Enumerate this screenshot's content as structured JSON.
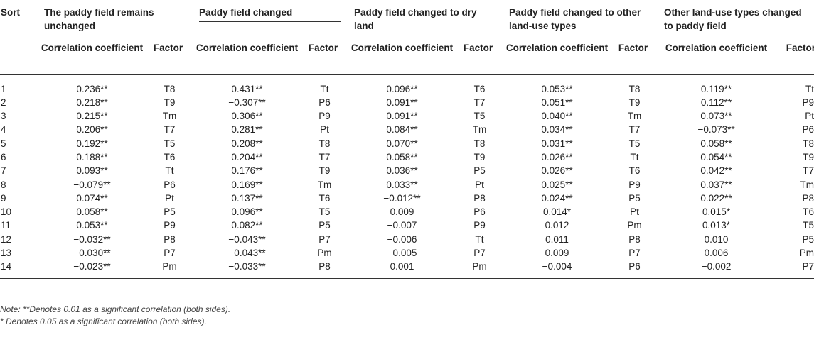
{
  "table": {
    "sort_header": "Sort",
    "groups": [
      "The paddy field remains unchanged",
      "Paddy field changed",
      "Paddy field changed to dry land",
      "Paddy field changed to other land-use types",
      "Other land-use types changed to paddy field"
    ],
    "corr_header": "Correlation coefficient",
    "factor_header": "Factor",
    "rows": [
      [
        "1",
        "0.236**",
        "T8",
        "0.431**",
        "Tt",
        "0.096**",
        "T6",
        "0.053**",
        "T8",
        "0.119**",
        "Tt"
      ],
      [
        "2",
        "0.218**",
        "T9",
        "−0.307**",
        "P6",
        "0.091**",
        "T7",
        "0.051**",
        "T9",
        "0.112**",
        "P9"
      ],
      [
        "3",
        "0.215**",
        "Tm",
        "0.306**",
        "P9",
        "0.091**",
        "T5",
        "0.040**",
        "Tm",
        "0.073**",
        "Pt"
      ],
      [
        "4",
        "0.206**",
        "T7",
        "0.281**",
        "Pt",
        "0.084**",
        "Tm",
        "0.034**",
        "T7",
        "−0.073**",
        "P6"
      ],
      [
        "5",
        "0.192**",
        "T5",
        "0.208**",
        "T8",
        "0.070**",
        "T8",
        "0.031**",
        "T5",
        "0.058**",
        "T8"
      ],
      [
        "6",
        "0.188**",
        "T6",
        "0.204**",
        "T7",
        "0.058**",
        "T9",
        "0.026**",
        "Tt",
        "0.054**",
        "T9"
      ],
      [
        "7",
        "0.093**",
        "Tt",
        "0.176**",
        "T9",
        "0.036**",
        "P5",
        "0.026**",
        "T6",
        "0.042**",
        "T7"
      ],
      [
        "8",
        "−0.079**",
        "P6",
        "0.169**",
        "Tm",
        "0.033**",
        "Pt",
        "0.025**",
        "P9",
        "0.037**",
        "Tm"
      ],
      [
        "9",
        "0.074**",
        "Pt",
        "0.137**",
        "T6",
        "−0.012**",
        "P8",
        "0.024**",
        "P5",
        "0.022**",
        "P8"
      ],
      [
        "10",
        "0.058**",
        "P5",
        "0.096**",
        "T5",
        "0.009",
        "P6",
        "0.014*",
        "Pt",
        "0.015*",
        "T6"
      ],
      [
        "11",
        "0.053**",
        "P9",
        "0.082**",
        "P5",
        "−0.007",
        "P9",
        "0.012",
        "Pm",
        "0.013*",
        "T5"
      ],
      [
        "12",
        "−0.032**",
        "P8",
        "−0.043**",
        "P7",
        "−0.006",
        "Tt",
        "0.011",
        "P8",
        "0.010",
        "P5"
      ],
      [
        "13",
        "−0.030**",
        "P7",
        "−0.043**",
        "Pm",
        "−0.005",
        "P7",
        "0.009",
        "P7",
        "0.006",
        "Pm"
      ],
      [
        "14",
        "−0.023**",
        "Pm",
        "−0.033**",
        "P8",
        "0.001",
        "Pm",
        "−0.004",
        "P6",
        "−0.002",
        "P7"
      ]
    ]
  },
  "notes": {
    "line1": "Note: **Denotes 0.01 as a significant correlation (both sides).",
    "line2": "* Denotes 0.05 as a significant correlation (both sides)."
  }
}
